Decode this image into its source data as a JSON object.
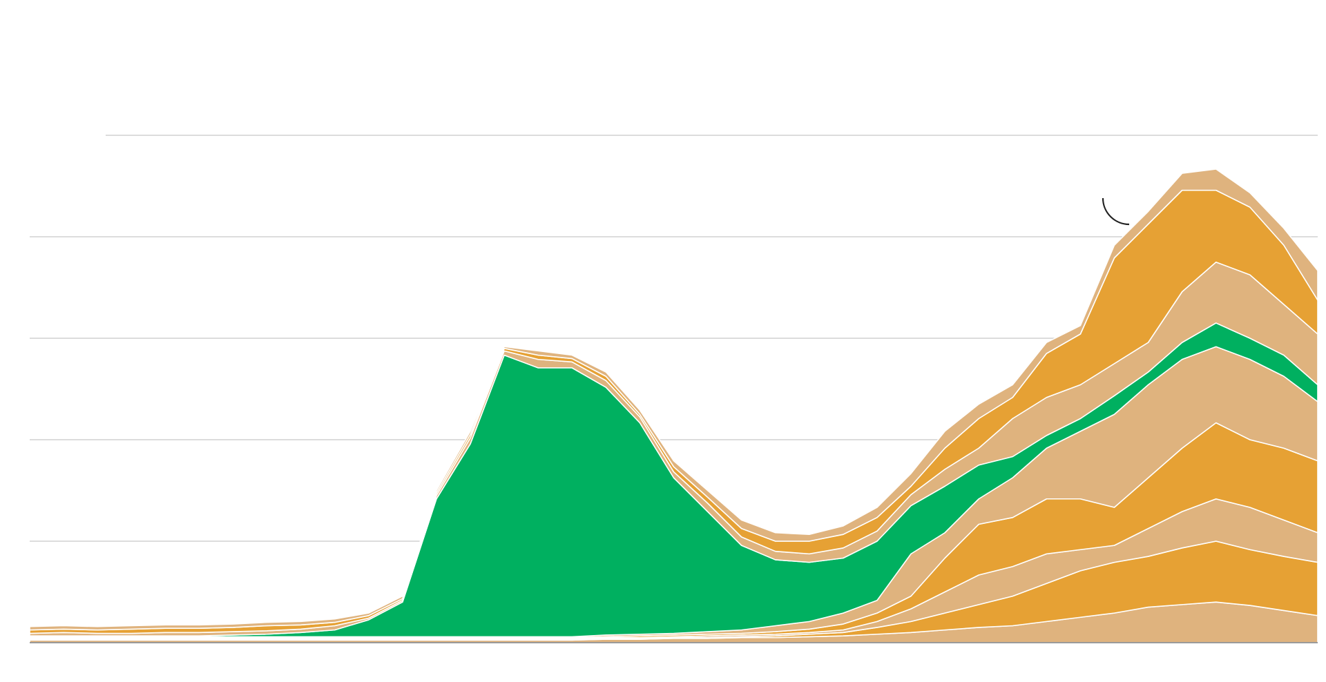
{
  "chart_data": {
    "type": "area",
    "stacked": true,
    "title": "",
    "xlabel": "",
    "ylabel": "",
    "x": [
      0,
      1,
      2,
      3,
      4,
      5,
      6,
      7,
      8,
      9,
      10,
      11,
      12,
      13,
      14,
      15,
      16,
      17,
      18,
      19,
      20,
      21,
      22,
      23,
      24,
      25,
      26,
      27,
      28,
      29,
      30,
      31,
      32,
      33,
      34,
      35,
      36,
      37,
      38
    ],
    "ylim": [
      0,
      60
    ],
    "gridlines": [
      12,
      24,
      36,
      48,
      60
    ],
    "grid": true,
    "legend": "none",
    "colors": {
      "green": "#00b060",
      "orange": "#e6a134",
      "tan": "#dfb37e",
      "separator": "#ffffff",
      "grid": "#c8c8c8",
      "baseline": "#9a9a9a",
      "annotation": "#222222"
    },
    "series": [
      {
        "color": "tan",
        "values": [
          0.3,
          0.3,
          0.3,
          0.3,
          0.3,
          0.3,
          0.3,
          0.3,
          0.3,
          0.3,
          0.3,
          0.3,
          0.3,
          0.3,
          0.3,
          0.3,
          0.3,
          0.4,
          0.4,
          0.5,
          0.5,
          0.6,
          0.6,
          0.7,
          0.8,
          1.0,
          1.2,
          1.5,
          1.8,
          2.0,
          2.5,
          3.0,
          3.5,
          4.2,
          4.5,
          4.8,
          4.4,
          3.8,
          3.2
        ]
      },
      {
        "color": "orange",
        "values": [
          0.1,
          0.1,
          0.1,
          0.1,
          0.1,
          0.1,
          0.1,
          0.1,
          0.1,
          0.1,
          0.1,
          0.1,
          0.1,
          0.1,
          0.1,
          0.1,
          0.1,
          0.1,
          0.1,
          0.1,
          0.1,
          0.1,
          0.2,
          0.3,
          0.4,
          0.8,
          1.3,
          2.0,
          2.7,
          3.5,
          4.5,
          5.5,
          6.0,
          6.0,
          6.7,
          7.2,
          6.6,
          6.4,
          6.3
        ]
      },
      {
        "color": "tan",
        "values": [
          0.1,
          0.1,
          0.1,
          0.1,
          0.1,
          0.1,
          0.1,
          0.1,
          0.1,
          0.1,
          0.1,
          0.1,
          0.1,
          0.1,
          0.1,
          0.1,
          0.1,
          0.1,
          0.1,
          0.1,
          0.2,
          0.2,
          0.2,
          0.2,
          0.3,
          0.7,
          1.5,
          2.5,
          3.5,
          3.5,
          3.5,
          2.5,
          2.0,
          3.3,
          4.3,
          5.0,
          5.0,
          4.3,
          3.5
        ]
      },
      {
        "color": "orange",
        "values": [
          0.1,
          0.1,
          0.1,
          0.1,
          0.1,
          0.1,
          0.1,
          0.1,
          0.1,
          0.1,
          0.1,
          0.1,
          0.1,
          0.1,
          0.1,
          0.1,
          0.1,
          0.1,
          0.2,
          0.2,
          0.2,
          0.2,
          0.3,
          0.4,
          0.7,
          1.0,
          1.5,
          4.0,
          6.0,
          5.8,
          6.5,
          6.0,
          4.5,
          6.0,
          7.5,
          9.0,
          8.0,
          8.5,
          8.5
        ]
      },
      {
        "color": "tan",
        "values": [
          0.1,
          0.1,
          0.1,
          0.1,
          0.1,
          0.1,
          0.1,
          0.1,
          0.1,
          0.1,
          0.1,
          0.1,
          0.1,
          0.1,
          0.1,
          0.1,
          0.1,
          0.2,
          0.2,
          0.2,
          0.3,
          0.4,
          0.7,
          0.9,
          1.3,
          1.5,
          5.0,
          3.0,
          3.0,
          4.7,
          6.0,
          8.0,
          11.0,
          11.0,
          10.5,
          9.0,
          9.5,
          8.5,
          7.0
        ]
      },
      {
        "color": "green",
        "values": [
          0.1,
          0.1,
          0.1,
          0.1,
          0.1,
          0.1,
          0.2,
          0.3,
          0.5,
          0.8,
          2.0,
          4.1,
          16.3,
          22.8,
          33.3,
          31.8,
          31.8,
          29.3,
          25.0,
          18.4,
          14.2,
          10.0,
          7.8,
          7.0,
          6.5,
          7.0,
          5.7,
          5.5,
          4.0,
          2.5,
          1.5,
          1.5,
          2.2,
          1.5,
          2.0,
          2.8,
          2.5,
          2.5,
          2.0
        ]
      },
      {
        "color": "tan",
        "values": [
          0.3,
          0.4,
          0.3,
          0.3,
          0.4,
          0.4,
          0.4,
          0.4,
          0.4,
          0.5,
          0.2,
          0.2,
          0.4,
          0.7,
          0.5,
          1.0,
          0.7,
          0.8,
          0.7,
          0.7,
          1.0,
          1.0,
          1.0,
          1.0,
          1.2,
          1.2,
          1.3,
          2.0,
          2.0,
          4.5,
          4.5,
          4.0,
          3.8,
          3.5,
          6.0,
          7.2,
          7.5,
          6.0,
          6.0
        ]
      },
      {
        "color": "orange",
        "values": [
          0.4,
          0.4,
          0.4,
          0.5,
          0.5,
          0.5,
          0.5,
          0.6,
          0.5,
          0.4,
          0.3,
          0.2,
          0.3,
          0.4,
          0.3,
          0.5,
          0.4,
          0.5,
          0.3,
          0.6,
          0.7,
          1.0,
          1.2,
          1.5,
          1.6,
          1.6,
          1.0,
          2.5,
          3.5,
          2.5,
          5.2,
          6.0,
          12.5,
          14.0,
          12.0,
          8.5,
          8.0,
          7.0,
          4.0
        ]
      },
      {
        "color": "tan",
        "values": [
          0.4,
          0.4,
          0.4,
          0.4,
          0.4,
          0.4,
          0.4,
          0.4,
          0.4,
          0.4,
          0.3,
          0.3,
          0.3,
          0.4,
          0.2,
          0.5,
          0.4,
          0.5,
          0.5,
          0.7,
          0.8,
          1.0,
          1.0,
          0.8,
          1.0,
          1.2,
          1.5,
          2.0,
          1.7,
          1.5,
          1.3,
          1.0,
          1.5,
          1.5,
          2.0,
          2.5,
          1.7,
          2.0,
          3.5
        ]
      }
    ],
    "annotation": {
      "shape": "arc",
      "near_x": 32
    }
  }
}
